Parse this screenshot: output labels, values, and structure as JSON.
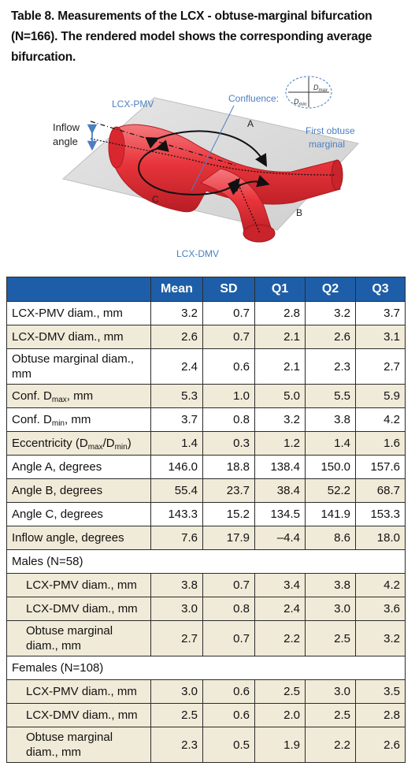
{
  "caption": "Table 8. Measurements of the LCX - obtuse-marginal bifurcation (N=166). The rendered model shows the corresponding average bifurcation.",
  "figure": {
    "label_lcx_pmv": "LCX-PMV",
    "label_confluence": "Confluence:",
    "label_dmax": "D",
    "label_dmax_sub": "max",
    "label_dmin": "D",
    "label_dmin_sub": "min",
    "label_a": "A",
    "label_b": "B",
    "label_c": "C",
    "label_inflow_1": "Inflow",
    "label_inflow_2": "angle",
    "label_first_om_1": "First obtuse",
    "label_first_om_2": "marginal",
    "label_lcx_dmv": "LCX-DMV",
    "vessel_color": "#e8343b",
    "accent_color": "#4a7fc0"
  },
  "table": {
    "headers": [
      "",
      "Mean",
      "SD",
      "Q1",
      "Q2",
      "Q3"
    ],
    "rows": [
      {
        "label": "LCX-PMV diam., mm",
        "values": [
          "3.2",
          "0.7",
          "2.8",
          "3.2",
          "3.7"
        ]
      },
      {
        "label": "LCX-DMV diam., mm",
        "values": [
          "2.6",
          "0.7",
          "2.1",
          "2.6",
          "3.1"
        ]
      },
      {
        "label": "Obtuse marginal diam., mm",
        "values": [
          "2.4",
          "0.6",
          "2.1",
          "2.3",
          "2.7"
        ]
      },
      {
        "label_pre": "Conf. D",
        "label_sub": "max",
        "label_post": ", mm",
        "values": [
          "5.3",
          "1.0",
          "5.0",
          "5.5",
          "5.9"
        ]
      },
      {
        "label_pre": "Conf. D",
        "label_sub": "min",
        "label_post": ", mm",
        "values": [
          "3.7",
          "0.8",
          "3.2",
          "3.8",
          "4.2"
        ]
      },
      {
        "label_pre": "Eccentricity (D",
        "label_sub": "max",
        "label_mid": "/D",
        "label_sub2": "min",
        "label_post": ")",
        "values": [
          "1.4",
          "0.3",
          "1.2",
          "1.4",
          "1.6"
        ]
      },
      {
        "label": "Angle A, degrees",
        "values": [
          "146.0",
          "18.8",
          "138.4",
          "150.0",
          "157.6"
        ]
      },
      {
        "label": "Angle B, degrees",
        "values": [
          "55.4",
          "23.7",
          "38.4",
          "52.2",
          "68.7"
        ]
      },
      {
        "label": "Angle C, degrees",
        "values": [
          "143.3",
          "15.2",
          "134.5",
          "141.9",
          "153.3"
        ]
      },
      {
        "label": "Inflow angle, degrees",
        "values": [
          "7.6",
          "17.9",
          "–4.4",
          "8.6",
          "18.0"
        ]
      }
    ],
    "males_header": "Males (N=58)",
    "males": [
      {
        "label": "LCX-PMV diam., mm",
        "values": [
          "3.8",
          "0.7",
          "3.4",
          "3.8",
          "4.2"
        ]
      },
      {
        "label": "LCX-DMV diam., mm",
        "values": [
          "3.0",
          "0.8",
          "2.4",
          "3.0",
          "3.6"
        ]
      },
      {
        "label": "Obtuse marginal diam., mm",
        "values": [
          "2.7",
          "0.7",
          "2.2",
          "2.5",
          "3.2"
        ]
      }
    ],
    "females_header": "Females (N=108)",
    "females": [
      {
        "label": "LCX-PMV diam., mm",
        "values": [
          "3.0",
          "0.6",
          "2.5",
          "3.0",
          "3.5"
        ]
      },
      {
        "label": "LCX-DMV diam., mm",
        "values": [
          "2.5",
          "0.6",
          "2.0",
          "2.5",
          "2.8"
        ]
      },
      {
        "label": "Obtuse marginal diam., mm",
        "values": [
          "2.3",
          "0.5",
          "1.9",
          "2.2",
          "2.6"
        ]
      }
    ]
  }
}
